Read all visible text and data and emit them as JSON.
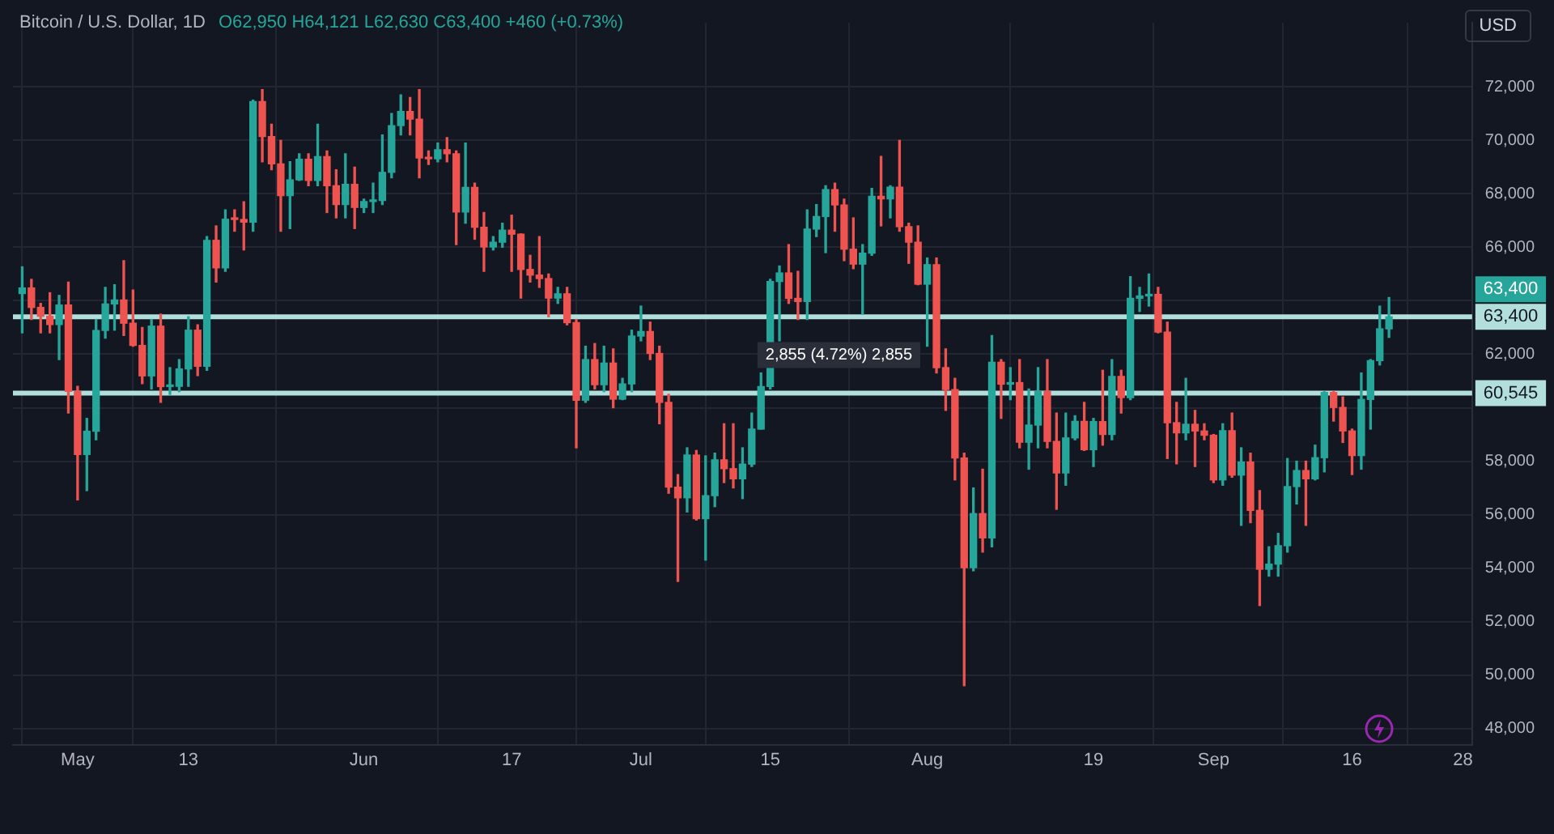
{
  "chart_data": {
    "type": "candlestick",
    "title": "Bitcoin / U.S. Dollar, 1D",
    "subtitle": "O62,950 H64,121 L62,630 C63,400 +460 (+0.73%)",
    "ylabel": "USD",
    "x": [
      "--04-25",
      "--04-26",
      "--04-27",
      "--04-28",
      "--04-29",
      "--04-30",
      "--05-01",
      "--05-02",
      "--05-03",
      "--05-04",
      "--05-05",
      "--05-06",
      "--05-07",
      "--05-08",
      "--05-09",
      "--05-10",
      "--05-11",
      "--05-12",
      "--05-13",
      "--05-14",
      "--05-15",
      "--05-16",
      "--05-17",
      "--05-18",
      "--05-19",
      "--05-20",
      "--05-21",
      "--05-22",
      "--05-23",
      "--05-24",
      "--05-25",
      "--05-26",
      "--05-27",
      "--05-28",
      "--05-29",
      "--05-30",
      "--05-31",
      "--06-01",
      "--06-02",
      "--06-03",
      "--06-04",
      "--06-05",
      "--06-06",
      "--06-07",
      "--06-08",
      "--06-09",
      "--06-10",
      "--06-11",
      "--06-12",
      "--06-13",
      "--06-14",
      "--06-15",
      "--06-16",
      "--06-17",
      "--06-18",
      "--06-19",
      "--06-20",
      "--06-21",
      "--06-22",
      "--06-23",
      "--06-24",
      "--06-25",
      "--06-26",
      "--06-27",
      "--06-28",
      "--06-29",
      "--06-30",
      "--07-01",
      "--07-02",
      "--07-03",
      "--07-04",
      "--07-05",
      "--07-06",
      "--07-07",
      "--07-08",
      "--07-09",
      "--07-10",
      "--07-11",
      "--07-12",
      "--07-13",
      "--07-14",
      "--07-15",
      "--07-16",
      "--07-17",
      "--07-18",
      "--07-19",
      "--07-20",
      "--07-21",
      "--07-22",
      "--07-23",
      "--07-24",
      "--07-25",
      "--07-26",
      "--07-27",
      "--07-28",
      "--07-29",
      "--07-30",
      "--07-31",
      "--08-01",
      "--08-02",
      "--08-03",
      "--08-04",
      "--08-05",
      "--08-06",
      "--08-07",
      "--08-08",
      "--08-09",
      "--08-10",
      "--08-11",
      "--08-12",
      "--08-13",
      "--08-14",
      "--08-15",
      "--08-16",
      "--08-17",
      "--08-18",
      "--08-19",
      "--08-20",
      "--08-21",
      "--08-22",
      "--08-23",
      "--08-24",
      "--08-25",
      "--08-26",
      "--08-27",
      "--08-28",
      "--08-29",
      "--08-30",
      "--08-31",
      "--09-01",
      "--09-02",
      "--09-03",
      "--09-04",
      "--09-05",
      "--09-06",
      "--09-07",
      "--09-08",
      "--09-09",
      "--09-10",
      "--09-11",
      "--09-12",
      "--09-13",
      "--09-14",
      "--09-15",
      "--09-16",
      "--09-17",
      "--09-18",
      "--09-19",
      "--09-20"
    ],
    "ohlc": [
      [
        64270,
        65270,
        62800,
        64480
      ],
      [
        64480,
        64800,
        63300,
        63750
      ],
      [
        63750,
        63900,
        62800,
        63420
      ],
      [
        63420,
        64300,
        62800,
        63110
      ],
      [
        63110,
        64200,
        61800,
        63840
      ],
      [
        63840,
        64700,
        59800,
        60610
      ],
      [
        60610,
        60800,
        56550,
        58250
      ],
      [
        58250,
        59600,
        56900,
        59120
      ],
      [
        59120,
        63300,
        58800,
        62890
      ],
      [
        62890,
        64500,
        62600,
        63880
      ],
      [
        63880,
        64600,
        62900,
        64030
      ],
      [
        64030,
        65500,
        62700,
        63160
      ],
      [
        63160,
        64400,
        62300,
        62330
      ],
      [
        62330,
        63000,
        60900,
        61190
      ],
      [
        61190,
        63300,
        60700,
        63050
      ],
      [
        63050,
        63500,
        60200,
        60790
      ],
      [
        60790,
        61500,
        60500,
        60800
      ],
      [
        60800,
        61800,
        60600,
        61450
      ],
      [
        61450,
        63400,
        60800,
        62900
      ],
      [
        62900,
        63100,
        61200,
        61550
      ],
      [
        61550,
        66400,
        61400,
        66260
      ],
      [
        66260,
        66800,
        64700,
        65230
      ],
      [
        65230,
        67400,
        65100,
        67050
      ],
      [
        67050,
        67400,
        66600,
        67040
      ],
      [
        67040,
        67700,
        65900,
        66940
      ],
      [
        66940,
        71500,
        66600,
        71450
      ],
      [
        71450,
        71900,
        69200,
        70140
      ],
      [
        70140,
        70600,
        68900,
        69120
      ],
      [
        69120,
        70000,
        66600,
        67930
      ],
      [
        67930,
        69200,
        66700,
        68520
      ],
      [
        68520,
        69500,
        68500,
        69290
      ],
      [
        69290,
        69500,
        68300,
        68500
      ],
      [
        68500,
        70600,
        68300,
        69390
      ],
      [
        69390,
        69600,
        67300,
        68300
      ],
      [
        68300,
        68900,
        67100,
        67600
      ],
      [
        67600,
        69500,
        67100,
        68350
      ],
      [
        68350,
        69000,
        66700,
        67490
      ],
      [
        67490,
        67800,
        67300,
        67710
      ],
      [
        67710,
        68400,
        67300,
        67750
      ],
      [
        67750,
        70200,
        67600,
        68800
      ],
      [
        68800,
        71000,
        68600,
        70550
      ],
      [
        70550,
        71700,
        70200,
        71080
      ],
      [
        71080,
        71600,
        70200,
        70790
      ],
      [
        70790,
        71900,
        68600,
        69340
      ],
      [
        69340,
        69600,
        69100,
        69310
      ],
      [
        69310,
        69900,
        69200,
        69650
      ],
      [
        69650,
        70100,
        69200,
        69500
      ],
      [
        69500,
        69600,
        66100,
        67320
      ],
      [
        67320,
        69900,
        66900,
        68240
      ],
      [
        68240,
        68400,
        66300,
        66750
      ],
      [
        66750,
        67300,
        65100,
        66010
      ],
      [
        66010,
        66400,
        65900,
        66190
      ],
      [
        66190,
        66900,
        66000,
        66640
      ],
      [
        66640,
        67200,
        65100,
        66490
      ],
      [
        66490,
        66500,
        64100,
        65170
      ],
      [
        65170,
        65700,
        64700,
        64960
      ],
      [
        64960,
        66400,
        64500,
        64830
      ],
      [
        64830,
        65000,
        63400,
        64100
      ],
      [
        64100,
        64500,
        63900,
        64260
      ],
      [
        64260,
        64500,
        63100,
        63180
      ],
      [
        63180,
        63300,
        58500,
        60280
      ],
      [
        60280,
        62300,
        60200,
        61800
      ],
      [
        61800,
        62400,
        60700,
        60860
      ],
      [
        60860,
        62300,
        60600,
        61670
      ],
      [
        61670,
        62200,
        60000,
        60320
      ],
      [
        60320,
        61100,
        60300,
        60890
      ],
      [
        60890,
        62900,
        60600,
        62680
      ],
      [
        62680,
        63800,
        62500,
        62850
      ],
      [
        62850,
        63200,
        61800,
        62030
      ],
      [
        62030,
        62300,
        59400,
        60200
      ],
      [
        60200,
        60500,
        56800,
        57030
      ],
      [
        57030,
        57500,
        53500,
        56630
      ],
      [
        56630,
        58500,
        56100,
        58230
      ],
      [
        58230,
        58400,
        55800,
        55850
      ],
      [
        55850,
        58200,
        54300,
        56710
      ],
      [
        56710,
        58300,
        56300,
        58050
      ],
      [
        58050,
        59400,
        57200,
        57720
      ],
      [
        57720,
        59400,
        57000,
        57340
      ],
      [
        57340,
        58500,
        56600,
        57890
      ],
      [
        57890,
        59800,
        57800,
        59200
      ],
      [
        59200,
        61300,
        59200,
        60790
      ],
      [
        60790,
        64800,
        60700,
        64720
      ],
      [
        64720,
        65300,
        62500,
        65040
      ],
      [
        65040,
        66100,
        63900,
        64090
      ],
      [
        64090,
        65100,
        63300,
        63970
      ],
      [
        63970,
        67400,
        63300,
        66680
      ],
      [
        66680,
        67600,
        66400,
        67150
      ],
      [
        67150,
        68300,
        65800,
        68160
      ],
      [
        68160,
        68400,
        66600,
        67580
      ],
      [
        67580,
        67800,
        65500,
        65930
      ],
      [
        65930,
        67100,
        65200,
        65370
      ],
      [
        65370,
        66100,
        63500,
        65780
      ],
      [
        65780,
        68200,
        65700,
        67910
      ],
      [
        67910,
        69400,
        66800,
        67810
      ],
      [
        67810,
        68300,
        67100,
        68250
      ],
      [
        68250,
        70000,
        66600,
        66770
      ],
      [
        66770,
        66900,
        65400,
        66190
      ],
      [
        66190,
        66800,
        64600,
        64620
      ],
      [
        64620,
        65600,
        62300,
        65350
      ],
      [
        65350,
        65600,
        61300,
        61500
      ],
      [
        61500,
        62200,
        59900,
        60680
      ],
      [
        60680,
        61100,
        57300,
        58120
      ],
      [
        58120,
        58300,
        49600,
        54020
      ],
      [
        54020,
        57000,
        53900,
        56040
      ],
      [
        56040,
        57700,
        54600,
        55130
      ],
      [
        55130,
        62700,
        54800,
        61700
      ],
      [
        61700,
        61800,
        59600,
        60880
      ],
      [
        60880,
        61500,
        60300,
        60940
      ],
      [
        60940,
        61800,
        58500,
        58710
      ],
      [
        58710,
        60700,
        57700,
        59350
      ],
      [
        59350,
        61500,
        58500,
        60610
      ],
      [
        60610,
        61800,
        58500,
        58740
      ],
      [
        58740,
        59800,
        56200,
        57560
      ],
      [
        57560,
        59800,
        57100,
        58870
      ],
      [
        58870,
        59700,
        58800,
        59490
      ],
      [
        59490,
        60200,
        58400,
        58430
      ],
      [
        58430,
        59600,
        57800,
        59480
      ],
      [
        59480,
        61400,
        58600,
        59000
      ],
      [
        59000,
        61800,
        58800,
        61170
      ],
      [
        61170,
        61400,
        59800,
        60380
      ],
      [
        60380,
        64900,
        60300,
        64090
      ],
      [
        64090,
        64500,
        63600,
        64180
      ],
      [
        64180,
        65000,
        63800,
        64240
      ],
      [
        64240,
        64500,
        62800,
        62830
      ],
      [
        62830,
        63200,
        58100,
        59440
      ],
      [
        59440,
        60200,
        57900,
        59060
      ],
      [
        59060,
        61100,
        58800,
        59380
      ],
      [
        59380,
        59900,
        57800,
        59130
      ],
      [
        59130,
        59400,
        58800,
        58970
      ],
      [
        58970,
        59000,
        57200,
        57300
      ],
      [
        57300,
        59400,
        57100,
        59140
      ],
      [
        59140,
        59800,
        57400,
        57480
      ],
      [
        57480,
        58500,
        55600,
        57970
      ],
      [
        57970,
        58300,
        55700,
        56160
      ],
      [
        56160,
        56900,
        52600,
        53960
      ],
      [
        53960,
        54800,
        53700,
        54150
      ],
      [
        54150,
        55300,
        53700,
        54840
      ],
      [
        54840,
        58100,
        54600,
        57050
      ],
      [
        57050,
        58000,
        56400,
        57650
      ],
      [
        57650,
        58000,
        55600,
        57340
      ],
      [
        57340,
        58600,
        57300,
        58130
      ],
      [
        58130,
        60600,
        57600,
        60570
      ],
      [
        60570,
        60600,
        59500,
        60010
      ],
      [
        60010,
        60400,
        58700,
        59130
      ],
      [
        59130,
        59200,
        57500,
        58210
      ],
      [
        58210,
        61300,
        57700,
        60310
      ],
      [
        60310,
        61800,
        59200,
        61760
      ],
      [
        61760,
        63800,
        61600,
        62950
      ],
      [
        62950,
        64121,
        62630,
        63400
      ]
    ],
    "colors": [
      "#26a69a",
      "#ef5350",
      "#ef5350",
      "#ef5350",
      "#26a69a",
      "#ef5350",
      "#ef5350",
      "#26a69a",
      "#26a69a",
      "#26a69a",
      "#26a69a",
      "#ef5350",
      "#ef5350",
      "#ef5350",
      "#26a69a",
      "#ef5350",
      "#26a69a",
      "#26a69a",
      "#26a69a",
      "#ef5350",
      "#26a69a",
      "#ef5350",
      "#26a69a",
      "#ef5350",
      "#ef5350",
      "#26a69a",
      "#ef5350",
      "#ef5350",
      "#ef5350",
      "#26a69a",
      "#26a69a",
      "#ef5350",
      "#26a69a",
      "#ef5350",
      "#ef5350",
      "#26a69a",
      "#ef5350",
      "#26a69a",
      "#26a69a",
      "#26a69a",
      "#26a69a",
      "#26a69a",
      "#ef5350",
      "#ef5350",
      "#ef5350",
      "#26a69a",
      "#ef5350",
      "#ef5350",
      "#26a69a",
      "#ef5350",
      "#ef5350",
      "#26a69a",
      "#26a69a",
      "#ef5350",
      "#ef5350",
      "#ef5350",
      "#ef5350",
      "#ef5350",
      "#26a69a",
      "#ef5350",
      "#ef5350",
      "#26a69a",
      "#ef5350",
      "#26a69a",
      "#ef5350",
      "#26a69a",
      "#26a69a",
      "#26a69a",
      "#ef5350",
      "#ef5350",
      "#ef5350",
      "#ef5350",
      "#26a69a",
      "#ef5350",
      "#26a69a",
      "#26a69a",
      "#ef5350",
      "#ef5350",
      "#26a69a",
      "#26a69a",
      "#26a69a",
      "#26a69a",
      "#26a69a",
      "#ef5350",
      "#ef5350",
      "#26a69a",
      "#26a69a",
      "#26a69a",
      "#ef5350",
      "#ef5350",
      "#ef5350",
      "#26a69a",
      "#26a69a",
      "#ef5350",
      "#26a69a",
      "#ef5350",
      "#ef5350",
      "#ef5350",
      "#26a69a",
      "#ef5350",
      "#ef5350",
      "#ef5350",
      "#ef5350",
      "#26a69a",
      "#ef5350",
      "#26a69a",
      "#ef5350",
      "#26a69a",
      "#ef5350",
      "#26a69a",
      "#26a69a",
      "#ef5350",
      "#ef5350",
      "#26a69a",
      "#26a69a",
      "#ef5350",
      "#26a69a",
      "#ef5350",
      "#26a69a",
      "#ef5350",
      "#26a69a",
      "#26a69a",
      "#26a69a",
      "#ef5350",
      "#ef5350",
      "#ef5350",
      "#26a69a",
      "#ef5350",
      "#ef5350",
      "#ef5350",
      "#26a69a",
      "#ef5350",
      "#26a69a",
      "#ef5350",
      "#ef5350",
      "#26a69a",
      "#26a69a",
      "#26a69a",
      "#26a69a",
      "#ef5350",
      "#26a69a",
      "#26a69a",
      "#ef5350",
      "#ef5350",
      "#ef5350",
      "#26a69a",
      "#26a69a",
      "#26a69a",
      "#26a69a"
    ],
    "xlim": [
      "--04-24",
      "--09-29"
    ],
    "xticks": [
      {
        "value": "--05-01",
        "label": "May"
      },
      {
        "value": "--05-13",
        "label": "13"
      },
      {
        "value": "--06-01",
        "label": "Jun"
      },
      {
        "value": "--06-17",
        "label": "17"
      },
      {
        "value": "--07-01",
        "label": "Jul"
      },
      {
        "value": "--07-15",
        "label": "15"
      },
      {
        "value": "--08-01",
        "label": "Aug"
      },
      {
        "value": "--08-19",
        "label": "19"
      },
      {
        "value": "--09-01",
        "label": "Sep"
      },
      {
        "value": "--09-16",
        "label": "16"
      },
      {
        "value": "--09-28",
        "label": "28"
      }
    ],
    "ylim": [
      47400,
      74400
    ],
    "yticks": [
      {
        "value": 48000,
        "label": "48,000"
      },
      {
        "value": 50000,
        "label": "50,000"
      },
      {
        "value": 52000,
        "label": "52,000"
      },
      {
        "value": 54000,
        "label": "54,000"
      },
      {
        "value": 56000,
        "label": "56,000"
      },
      {
        "value": 58000,
        "label": "58,000"
      },
      {
        "value": 60000,
        "label": null
      },
      {
        "value": 62000,
        "label": "62,000"
      },
      {
        "value": 64000,
        "label": null
      },
      {
        "value": 66000,
        "label": "66,000"
      },
      {
        "value": 68000,
        "label": "68,000"
      },
      {
        "value": 70000,
        "label": "70,000"
      },
      {
        "value": 72000,
        "label": "72,000"
      }
    ],
    "grid": true,
    "ref_lines": [
      {
        "axis": "y",
        "value": 63400,
        "label": "63,400",
        "color": "#b2dfdb"
      },
      {
        "axis": "y",
        "value": 60545,
        "label": "60,545",
        "color": "#b2dfdb"
      }
    ],
    "annotations": [
      "2,855 (4.72%) 2,855",
      "63,400"
    ]
  }
}
